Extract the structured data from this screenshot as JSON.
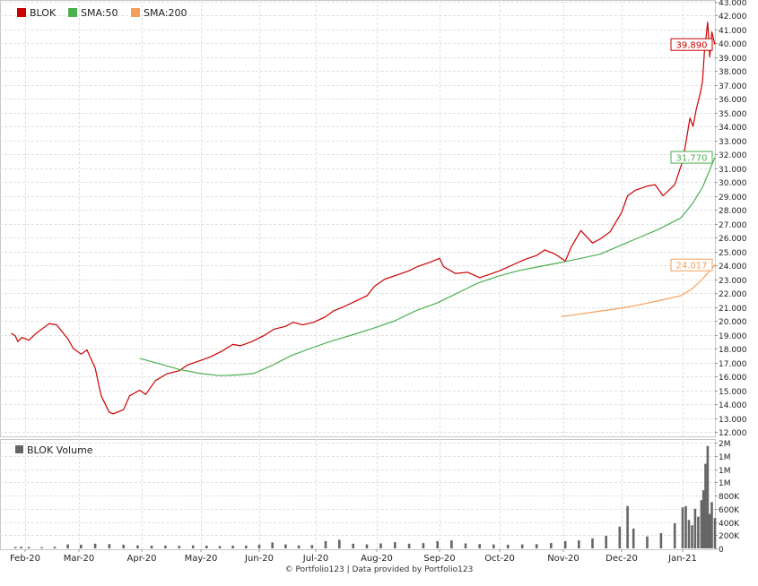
{
  "chart_data": [
    {
      "type": "line",
      "ticker": "BLOK",
      "legend": [
        "BLOK",
        "SMA:50",
        "SMA:200"
      ],
      "colors": {
        "price": "#cc0000",
        "sma50": "#4caf50",
        "sma200": "#f5a05a"
      },
      "y_ticks": [
        "12.000",
        "13.000",
        "14.000",
        "15.000",
        "16.000",
        "17.000",
        "18.000",
        "19.000",
        "20.000",
        "21.000",
        "22.000",
        "23.000",
        "24.000",
        "25.000",
        "26.000",
        "27.000",
        "28.000",
        "29.000",
        "30.000",
        "31.000",
        "32.000",
        "33.000",
        "34.000",
        "35.000",
        "36.000",
        "37.000",
        "38.000",
        "39.000",
        "40.000",
        "41.000",
        "42.000",
        "43.000"
      ],
      "ylim": [
        12,
        43
      ],
      "x_ticks": [
        "Feb-20",
        "Mar-20",
        "Apr-20",
        "May-20",
        "Jun-20",
        "Jul-20",
        "Aug-20",
        "Sep-20",
        "Oct-20",
        "Nov-20",
        "Dec-20",
        "Jan-21"
      ],
      "last_values": {
        "price": "39.890",
        "sma50": "31.770",
        "sma200": "24.017"
      },
      "series": [
        {
          "key": "price",
          "name": "BLOK",
          "points": [
            [
              "2020-01-15",
              19.1
            ],
            [
              "2020-01-20",
              18.9
            ],
            [
              "2020-01-23",
              18.5
            ],
            [
              "2020-01-28",
              18.8
            ],
            [
              "2020-02-03",
              18.6
            ],
            [
              "2020-02-07",
              19.1
            ],
            [
              "2020-02-12",
              19.6
            ],
            [
              "2020-02-14",
              19.8
            ],
            [
              "2020-02-18",
              19.7
            ],
            [
              "2020-02-21",
              19.2
            ],
            [
              "2020-02-24",
              18.7
            ],
            [
              "2020-02-27",
              18.0
            ],
            [
              "2020-03-02",
              17.6
            ],
            [
              "2020-03-05",
              17.9
            ],
            [
              "2020-03-09",
              16.6
            ],
            [
              "2020-03-12",
              14.6
            ],
            [
              "2020-03-16",
              13.4
            ],
            [
              "2020-03-18",
              13.3
            ],
            [
              "2020-03-23",
              13.6
            ],
            [
              "2020-03-26",
              14.6
            ],
            [
              "2020-03-31",
              15.0
            ],
            [
              "2020-04-03",
              14.7
            ],
            [
              "2020-04-08",
              15.7
            ],
            [
              "2020-04-14",
              16.2
            ],
            [
              "2020-04-20",
              16.4
            ],
            [
              "2020-04-24",
              16.8
            ],
            [
              "2020-04-30",
              17.1
            ],
            [
              "2020-05-06",
              17.4
            ],
            [
              "2020-05-12",
              17.8
            ],
            [
              "2020-05-18",
              18.3
            ],
            [
              "2020-05-22",
              18.2
            ],
            [
              "2020-05-28",
              18.5
            ],
            [
              "2020-06-03",
              18.9
            ],
            [
              "2020-06-09",
              19.4
            ],
            [
              "2020-06-15",
              19.6
            ],
            [
              "2020-06-19",
              19.9
            ],
            [
              "2020-06-24",
              19.7
            ],
            [
              "2020-06-30",
              19.9
            ],
            [
              "2020-07-06",
              20.3
            ],
            [
              "2020-07-10",
              20.7
            ],
            [
              "2020-07-15",
              21.0
            ],
            [
              "2020-07-21",
              21.4
            ],
            [
              "2020-07-27",
              21.8
            ],
            [
              "2020-07-31",
              22.5
            ],
            [
              "2020-08-05",
              23.0
            ],
            [
              "2020-08-11",
              23.3
            ],
            [
              "2020-08-17",
              23.6
            ],
            [
              "2020-08-21",
              23.9
            ],
            [
              "2020-08-27",
              24.2
            ],
            [
              "2020-09-01",
              24.5
            ],
            [
              "2020-09-03",
              23.9
            ],
            [
              "2020-09-09",
              23.4
            ],
            [
              "2020-09-15",
              23.5
            ],
            [
              "2020-09-21",
              23.1
            ],
            [
              "2020-09-25",
              23.3
            ],
            [
              "2020-10-01",
              23.6
            ],
            [
              "2020-10-07",
              24.0
            ],
            [
              "2020-10-13",
              24.4
            ],
            [
              "2020-10-19",
              24.7
            ],
            [
              "2020-10-23",
              25.1
            ],
            [
              "2020-10-28",
              24.8
            ],
            [
              "2020-11-02",
              24.3
            ],
            [
              "2020-11-05",
              25.3
            ],
            [
              "2020-11-10",
              26.5
            ],
            [
              "2020-11-16",
              25.6
            ],
            [
              "2020-11-20",
              25.9
            ],
            [
              "2020-11-25",
              26.4
            ],
            [
              "2020-12-01",
              27.8
            ],
            [
              "2020-12-04",
              29.0
            ],
            [
              "2020-12-08",
              29.4
            ],
            [
              "2020-12-14",
              29.7
            ],
            [
              "2020-12-18",
              29.8
            ],
            [
              "2020-12-22",
              29.0
            ],
            [
              "2020-12-28",
              29.8
            ],
            [
              "2021-01-01",
              31.5
            ],
            [
              "2021-01-05",
              33.2
            ],
            [
              "2021-01-08",
              34.6
            ],
            [
              "2021-01-11",
              34.0
            ],
            [
              "2021-01-14",
              35.2
            ],
            [
              "2021-01-18",
              36.4
            ],
            [
              "2021-01-20",
              37.2
            ],
            [
              "2021-01-22",
              39.5
            ],
            [
              "2021-01-25",
              41.5
            ],
            [
              "2021-01-27",
              39.0
            ],
            [
              "2021-01-29",
              40.8
            ],
            [
              "2021-02-01",
              39.89
            ]
          ]
        },
        {
          "key": "sma50",
          "name": "SMA:50",
          "points": [
            [
              "2020-03-31",
              17.3
            ],
            [
              "2020-04-10",
              16.9
            ],
            [
              "2020-04-20",
              16.5
            ],
            [
              "2020-05-01",
              16.2
            ],
            [
              "2020-05-11",
              16.05
            ],
            [
              "2020-05-21",
              16.1
            ],
            [
              "2020-05-29",
              16.2
            ],
            [
              "2020-06-08",
              16.8
            ],
            [
              "2020-06-18",
              17.5
            ],
            [
              "2020-06-28",
              18.0
            ],
            [
              "2020-07-08",
              18.5
            ],
            [
              "2020-07-20",
              19.0
            ],
            [
              "2020-07-31",
              19.5
            ],
            [
              "2020-08-10",
              20.0
            ],
            [
              "2020-08-20",
              20.7
            ],
            [
              "2020-08-31",
              21.3
            ],
            [
              "2020-09-10",
              22.0
            ],
            [
              "2020-09-20",
              22.7
            ],
            [
              "2020-09-30",
              23.2
            ],
            [
              "2020-10-10",
              23.6
            ],
            [
              "2020-10-20",
              23.9
            ],
            [
              "2020-10-31",
              24.2
            ],
            [
              "2020-11-10",
              24.5
            ],
            [
              "2020-11-20",
              24.8
            ],
            [
              "2020-11-30",
              25.4
            ],
            [
              "2020-12-10",
              26.0
            ],
            [
              "2020-12-20",
              26.6
            ],
            [
              "2020-12-31",
              27.4
            ],
            [
              "2021-01-10",
              28.4
            ],
            [
              "2021-01-20",
              29.6
            ],
            [
              "2021-02-01",
              31.77
            ]
          ]
        },
        {
          "key": "sma200",
          "name": "SMA:200",
          "points": [
            [
              "2020-10-31",
              20.3
            ],
            [
              "2020-11-10",
              20.5
            ],
            [
              "2020-11-20",
              20.7
            ],
            [
              "2020-11-30",
              20.9
            ],
            [
              "2020-12-10",
              21.15
            ],
            [
              "2020-12-20",
              21.45
            ],
            [
              "2020-12-31",
              21.8
            ],
            [
              "2021-01-10",
              22.3
            ],
            [
              "2021-01-20",
              23.0
            ],
            [
              "2021-02-01",
              24.017
            ]
          ]
        }
      ]
    },
    {
      "type": "bar",
      "title": "BLOK Volume",
      "color": "#666666",
      "y_ticks": [
        "0",
        "200K",
        "400K",
        "600K",
        "800K",
        "1M",
        "1M",
        "1M",
        "2M"
      ],
      "ylim": [
        0,
        1600000
      ],
      "x_ticks": [
        "Feb-20",
        "Mar-20",
        "Apr-20",
        "May-20",
        "Jun-20",
        "Jul-20",
        "Aug-20",
        "Sep-20",
        "Oct-20",
        "Nov-20",
        "Dec-20",
        "Jan-21"
      ],
      "points": [
        [
          "2020-01-20",
          20000
        ],
        [
          "2020-01-27",
          25000
        ],
        [
          "2020-02-03",
          22000
        ],
        [
          "2020-02-10",
          18000
        ],
        [
          "2020-02-17",
          24000
        ],
        [
          "2020-02-24",
          60000
        ],
        [
          "2020-03-02",
          55000
        ],
        [
          "2020-03-09",
          70000
        ],
        [
          "2020-03-16",
          65000
        ],
        [
          "2020-03-23",
          55000
        ],
        [
          "2020-03-30",
          45000
        ],
        [
          "2020-04-06",
          40000
        ],
        [
          "2020-04-13",
          42000
        ],
        [
          "2020-04-20",
          38000
        ],
        [
          "2020-04-27",
          45000
        ],
        [
          "2020-05-04",
          40000
        ],
        [
          "2020-05-11",
          35000
        ],
        [
          "2020-05-18",
          40000
        ],
        [
          "2020-05-25",
          42000
        ],
        [
          "2020-06-01",
          55000
        ],
        [
          "2020-06-08",
          90000
        ],
        [
          "2020-06-15",
          60000
        ],
        [
          "2020-06-22",
          45000
        ],
        [
          "2020-06-29",
          50000
        ],
        [
          "2020-07-06",
          110000
        ],
        [
          "2020-07-13",
          130000
        ],
        [
          "2020-07-20",
          70000
        ],
        [
          "2020-07-27",
          60000
        ],
        [
          "2020-08-03",
          75000
        ],
        [
          "2020-08-10",
          95000
        ],
        [
          "2020-08-17",
          70000
        ],
        [
          "2020-08-24",
          80000
        ],
        [
          "2020-08-31",
          110000
        ],
        [
          "2020-09-07",
          120000
        ],
        [
          "2020-09-14",
          75000
        ],
        [
          "2020-09-21",
          65000
        ],
        [
          "2020-09-28",
          60000
        ],
        [
          "2020-10-05",
          55000
        ],
        [
          "2020-10-12",
          60000
        ],
        [
          "2020-10-19",
          65000
        ],
        [
          "2020-10-26",
          80000
        ],
        [
          "2020-11-02",
          110000
        ],
        [
          "2020-11-09",
          120000
        ],
        [
          "2020-11-16",
          150000
        ],
        [
          "2020-11-23",
          190000
        ],
        [
          "2020-11-30",
          330000
        ],
        [
          "2020-12-04",
          640000
        ],
        [
          "2020-12-07",
          300000
        ],
        [
          "2020-12-14",
          180000
        ],
        [
          "2020-12-21",
          230000
        ],
        [
          "2020-12-28",
          380000
        ],
        [
          "2021-01-01",
          620000
        ],
        [
          "2021-01-04",
          640000
        ],
        [
          "2021-01-07",
          430000
        ],
        [
          "2021-01-10",
          350000
        ],
        [
          "2021-01-13",
          600000
        ],
        [
          "2021-01-16",
          480000
        ],
        [
          "2021-01-19",
          730000
        ],
        [
          "2021-01-21",
          880000
        ],
        [
          "2021-01-23",
          1280000
        ],
        [
          "2021-01-25",
          1550000
        ],
        [
          "2021-01-27",
          520000
        ],
        [
          "2021-01-29",
          700000
        ],
        [
          "2021-02-01",
          460000
        ]
      ]
    }
  ],
  "footer": "© Portfolio123 | Data provided by Portfolio123"
}
